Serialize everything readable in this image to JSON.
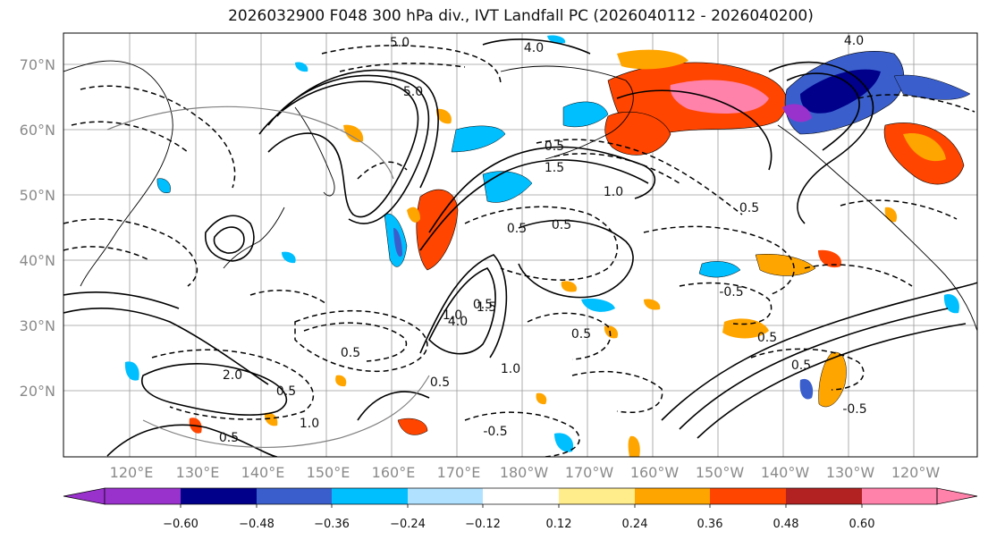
{
  "title": "2026032900 F048 300 hPa div., IVT Landfall PC (2026040112 - 2026040200)",
  "map": {
    "lat_labels": [
      "70°N",
      "60°N",
      "50°N",
      "40°N",
      "30°N",
      "20°N"
    ],
    "lon_labels": [
      "120°E",
      "130°E",
      "140°E",
      "150°E",
      "160°E",
      "170°E",
      "180°W",
      "170°W",
      "160°W",
      "150°W",
      "140°W",
      "130°W",
      "120°W"
    ],
    "contour_labels": [
      "5.0",
      "4.0",
      "5.0",
      "4.0",
      "1.5",
      "0.5",
      "1.0",
      "0.5",
      "0.5",
      "1.5",
      "1.0",
      "0.5",
      "2.0",
      "0.5",
      "0.5",
      "1.0",
      "0.5",
      "0.5",
      "0.5",
      "4.0",
      "0.5",
      "-0.5",
      "-0.5",
      "-0.5",
      "0.5",
      "0.5",
      "1.0"
    ],
    "grid": true
  },
  "colorbar": {
    "colors": [
      "#9932cc",
      "#00008b",
      "#3a5fcd",
      "#00bfff",
      "#b0e2ff",
      "#ffffff",
      "#ffec8b",
      "#ffa500",
      "#ff4500",
      "#b22222",
      "#ff82ab"
    ],
    "tick_labels": [
      "−0.60",
      "−0.48",
      "−0.36",
      "−0.24",
      "−0.12",
      "0.12",
      "0.24",
      "0.36",
      "0.48",
      "0.60"
    ]
  }
}
